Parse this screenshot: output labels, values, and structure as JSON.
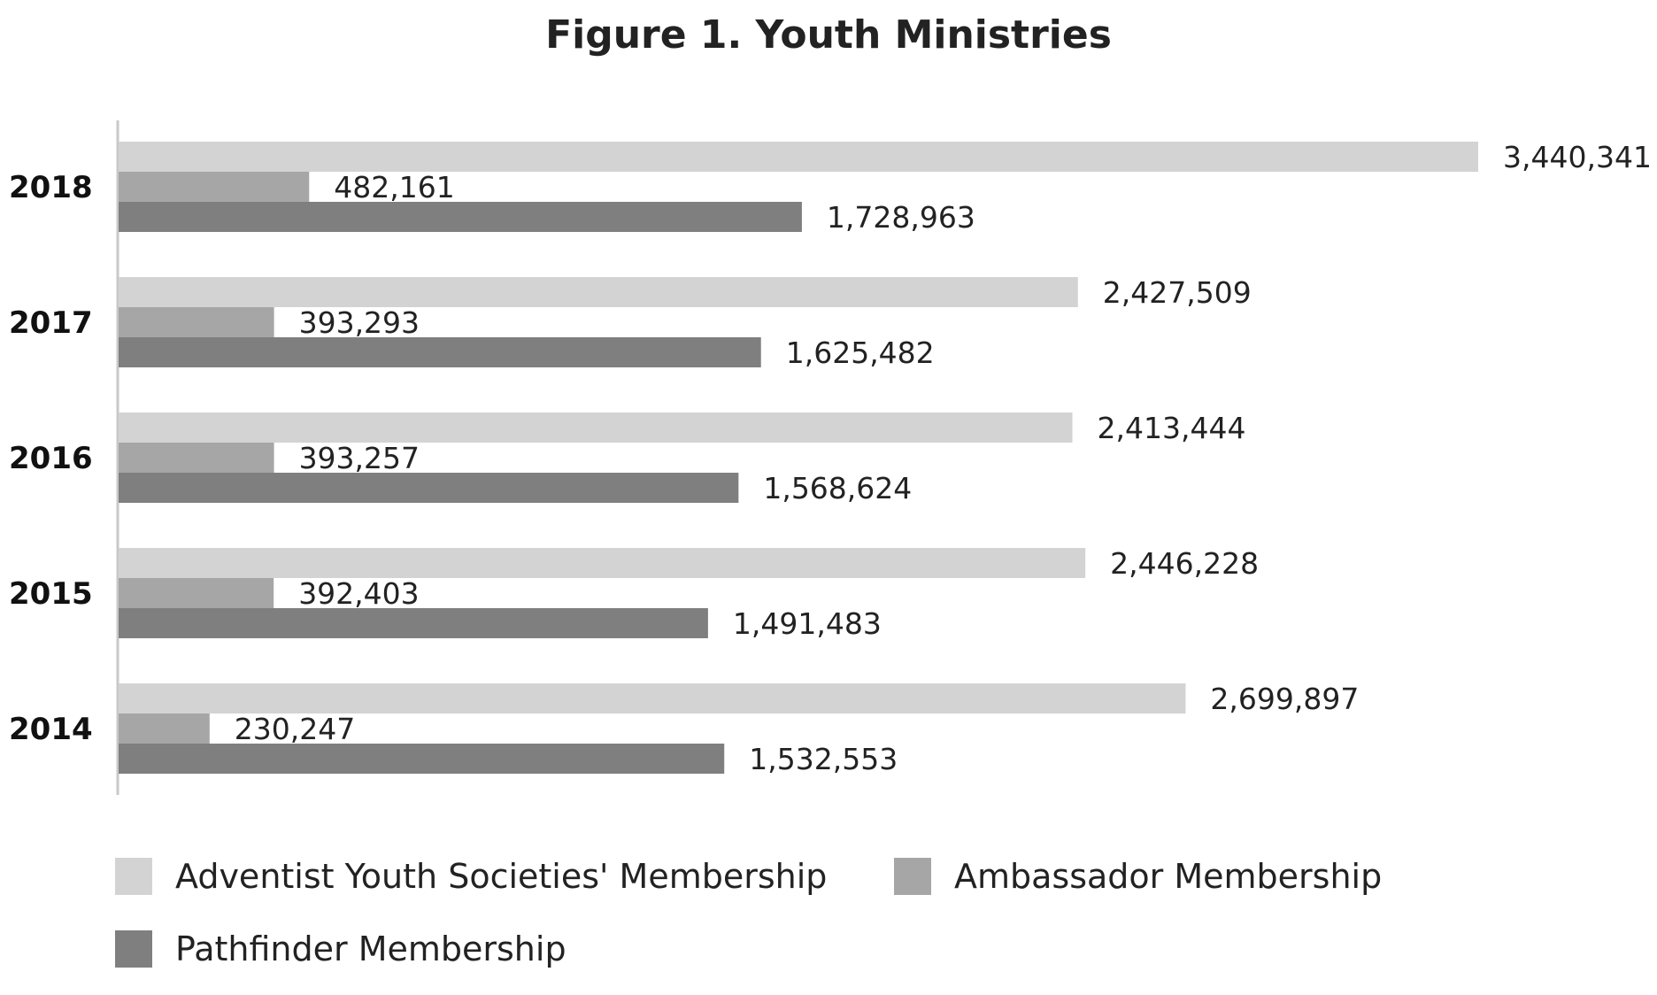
{
  "chart_data": {
    "type": "bar",
    "orientation": "horizontal",
    "title": "Figure 1. Youth Ministries",
    "xlabel": "",
    "ylabel": "",
    "xlim": [
      0,
      3440341
    ],
    "grid": false,
    "legend_position": "bottom",
    "categories": [
      "2018",
      "2017",
      "2016",
      "2015",
      "2014"
    ],
    "value_labels": true,
    "series": [
      {
        "name": "Adventist Youth Societies' Membership",
        "color": "#d3d3d3",
        "values": [
          3440341,
          2427509,
          2413444,
          2446228,
          2699897
        ],
        "labels": [
          "3,440,341",
          "2,427,509",
          "2,413,444",
          "2,446,228",
          "2,699,897"
        ]
      },
      {
        "name": "Ambassador Membership",
        "color": "#a6a6a6",
        "values": [
          482161,
          393293,
          393257,
          392403,
          230247
        ],
        "labels": [
          "482,161",
          "393,293",
          "393,257",
          "392,403",
          "230,247"
        ]
      },
      {
        "name": "Pathfinder Membership",
        "color": "#7f7f7f",
        "values": [
          1728963,
          1625482,
          1568624,
          1491483,
          1532553
        ],
        "labels": [
          "1,728,963",
          "1,625,482",
          "1,568,624",
          "1,491,483",
          "1,532,553"
        ]
      }
    ]
  }
}
